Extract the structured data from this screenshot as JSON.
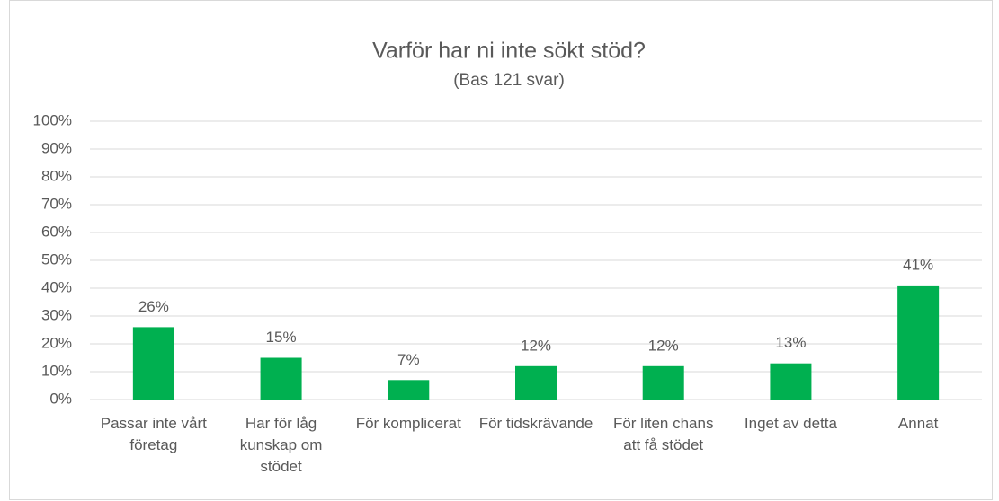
{
  "chart_data": {
    "type": "bar",
    "title": "Varför har ni inte sökt stöd?",
    "subtitle": "(Bas 121 svar)",
    "categories": [
      "Passar inte vårt företag",
      "Har för låg kunskap om stödet",
      "För komplicerat",
      "För tidskrävande",
      "För liten chans att få stödet",
      "Inget av detta",
      "Annat"
    ],
    "values": [
      26,
      15,
      7,
      12,
      12,
      13,
      41
    ],
    "value_labels": [
      "26%",
      "15%",
      "7%",
      "12%",
      "12%",
      "13%",
      "41%"
    ],
    "color": "#00b050",
    "ylim": [
      0,
      100
    ],
    "yticks": [
      {
        "value": 0,
        "label": "0%"
      },
      {
        "value": 10,
        "label": "10%"
      },
      {
        "value": 20,
        "label": "20%"
      },
      {
        "value": 30,
        "label": "30%"
      },
      {
        "value": 40,
        "label": "40%"
      },
      {
        "value": 50,
        "label": "50%"
      },
      {
        "value": 60,
        "label": "60%"
      },
      {
        "value": 70,
        "label": "70%"
      },
      {
        "value": 80,
        "label": "80%"
      },
      {
        "value": 90,
        "label": "90%"
      },
      {
        "value": 100,
        "label": "100%"
      }
    ],
    "grid": true
  }
}
